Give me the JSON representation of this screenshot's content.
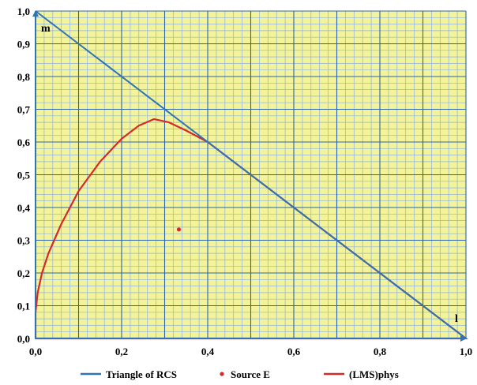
{
  "chart_data": {
    "type": "line",
    "title": "",
    "xlabel": "l",
    "ylabel": "m",
    "xlim": [
      0,
      1
    ],
    "ylim": [
      0,
      1
    ],
    "x_ticks": [
      "0,0",
      "0,2",
      "0,4",
      "0,6",
      "0,8",
      "1,0"
    ],
    "y_ticks": [
      "0,0",
      "0,1",
      "0,2",
      "0,3",
      "0,4",
      "0,5",
      "0,6",
      "0,7",
      "0,8",
      "0,9",
      "1,0"
    ],
    "grid": true,
    "legend_position": "bottom",
    "colors": {
      "plot_background": "#f3f39a",
      "major_grid": "#2d64ac",
      "minor_grid": "#8fb2e0",
      "triangle": "#2f74b5",
      "curve": "#d42a2a",
      "source": "#d42a2a"
    },
    "series": [
      {
        "name": "Triangle of RCS",
        "type": "line",
        "x": [
          0,
          1,
          0,
          0
        ],
        "y": [
          1,
          0,
          0,
          1
        ]
      },
      {
        "name": "Source E",
        "type": "scatter",
        "x": [
          0.333
        ],
        "y": [
          0.333
        ]
      },
      {
        "name": "(LMS)phys",
        "type": "line",
        "x": [
          0.0,
          0.0,
          0.005,
          0.015,
          0.03,
          0.06,
          0.1,
          0.15,
          0.2,
          0.24,
          0.275,
          0.31,
          0.35,
          0.4,
          0.5,
          0.6,
          0.7,
          0.8,
          0.9,
          1.0,
          0.6,
          0.2,
          0.0
        ],
        "y": [
          0.0,
          0.08,
          0.14,
          0.2,
          0.26,
          0.35,
          0.45,
          0.54,
          0.61,
          0.65,
          0.67,
          0.66,
          0.635,
          0.6,
          0.5,
          0.4,
          0.3,
          0.2,
          0.1,
          0.0,
          0.0,
          0.0,
          0.0
        ]
      }
    ]
  }
}
